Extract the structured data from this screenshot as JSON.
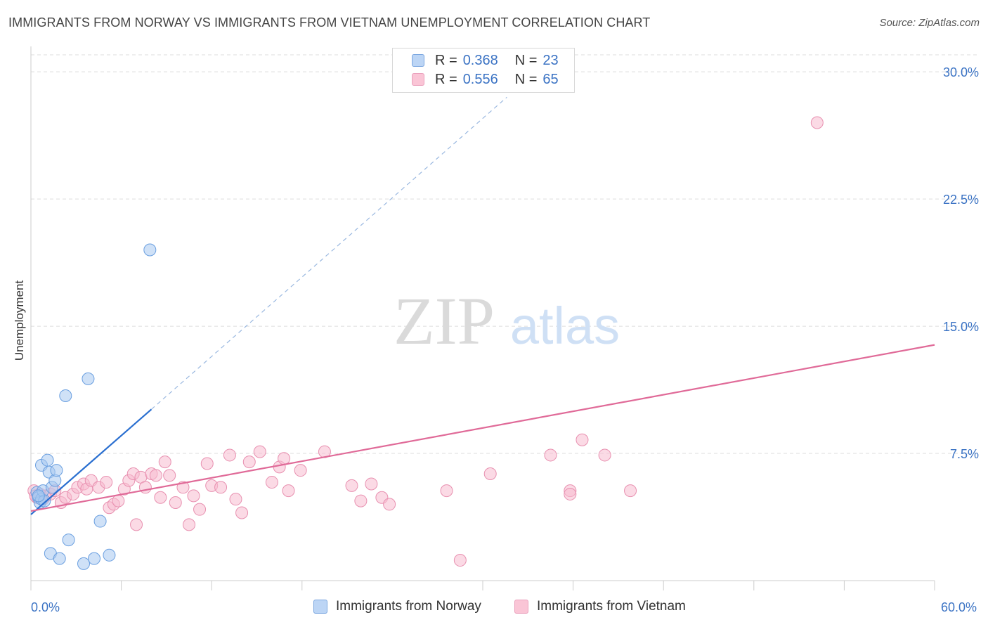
{
  "header": {
    "title": "IMMIGRANTS FROM NORWAY VS IMMIGRANTS FROM VIETNAM UNEMPLOYMENT CORRELATION CHART",
    "source": "Source: ZipAtlas.com"
  },
  "watermark": {
    "zip": "ZIP",
    "atlas": "atlas"
  },
  "colors": {
    "norway_fill": "#a8c8f0",
    "norway_stroke": "#6a9fe0",
    "norway_line": "#2a6fd0",
    "vietnam_fill": "#f8bcd0",
    "vietnam_stroke": "#e890b0",
    "vietnam_line": "#e06a98",
    "tick_label": "#3b73c4",
    "grid": "#dddddd"
  },
  "legend": {
    "rows": [
      {
        "r_label": "R =",
        "r_value": "0.368",
        "n_label": "N =",
        "n_value": "23"
      },
      {
        "r_label": "R =",
        "r_value": "0.556",
        "n_label": "N =",
        "n_value": "65"
      }
    ]
  },
  "chart_data": {
    "type": "scatter",
    "title": "IMMIGRANTS FROM NORWAY VS IMMIGRANTS FROM VIETNAM UNEMPLOYMENT CORRELATION CHART",
    "xlabel": "",
    "ylabel": "Unemployment",
    "xlim": [
      0,
      60
    ],
    "ylim": [
      0,
      31
    ],
    "x_tick_labels": [
      {
        "value": 0,
        "label": "0.0%"
      },
      {
        "value": 60,
        "label": "60.0%"
      }
    ],
    "y_tick_labels": [
      {
        "value": 7.5,
        "label": "7.5%"
      },
      {
        "value": 15,
        "label": "15.0%"
      },
      {
        "value": 22.5,
        "label": "22.5%"
      },
      {
        "value": 30,
        "label": "30.0%"
      }
    ],
    "x_ticks_minor": [
      0,
      6,
      12,
      18,
      30,
      36,
      42,
      48,
      54,
      60
    ],
    "grid": true,
    "series": [
      {
        "name": "Immigrants from Norway",
        "r": 0.368,
        "n": 23,
        "trend": {
          "x0": 0,
          "y0": 3.9,
          "x1": 8,
          "y1": 10.1,
          "dash_to_x": 31.6,
          "dash_to_y": 28.5
        },
        "points": [
          [
            0.4,
            5.2
          ],
          [
            0.5,
            4.9
          ],
          [
            0.6,
            4.6
          ],
          [
            0.7,
            4.8
          ],
          [
            0.8,
            5.3
          ],
          [
            0.9,
            4.7
          ],
          [
            0.7,
            6.8
          ],
          [
            1.1,
            7.1
          ],
          [
            1.2,
            6.4
          ],
          [
            1.4,
            5.5
          ],
          [
            1.6,
            5.9
          ],
          [
            1.7,
            6.5
          ],
          [
            2.3,
            10.9
          ],
          [
            3.8,
            11.9
          ],
          [
            2.5,
            2.4
          ],
          [
            1.3,
            1.6
          ],
          [
            1.9,
            1.3
          ],
          [
            3.5,
            1.0
          ],
          [
            4.2,
            1.3
          ],
          [
            5.2,
            1.5
          ],
          [
            4.6,
            3.5
          ],
          [
            7.9,
            19.5
          ],
          [
            0.5,
            5.0
          ]
        ]
      },
      {
        "name": "Immigrants from Vietnam",
        "r": 0.556,
        "n": 65,
        "trend": {
          "x0": 0,
          "y0": 4.1,
          "x1": 60,
          "y1": 13.9
        },
        "points": [
          [
            0.2,
            5.3
          ],
          [
            0.4,
            4.9
          ],
          [
            0.6,
            5.1
          ],
          [
            0.8,
            4.8
          ],
          [
            1.0,
            5.0
          ],
          [
            1.3,
            5.1
          ],
          [
            1.6,
            5.3
          ],
          [
            2.0,
            4.6
          ],
          [
            2.3,
            4.9
          ],
          [
            2.8,
            5.1
          ],
          [
            3.1,
            5.5
          ],
          [
            3.5,
            5.7
          ],
          [
            3.7,
            5.4
          ],
          [
            4.0,
            5.9
          ],
          [
            4.5,
            5.5
          ],
          [
            5.0,
            5.8
          ],
          [
            5.2,
            4.3
          ],
          [
            5.5,
            4.5
          ],
          [
            5.8,
            4.7
          ],
          [
            6.2,
            5.4
          ],
          [
            6.5,
            5.9
          ],
          [
            6.8,
            6.3
          ],
          [
            7.0,
            3.3
          ],
          [
            7.3,
            6.1
          ],
          [
            7.6,
            5.5
          ],
          [
            8.0,
            6.3
          ],
          [
            8.3,
            6.2
          ],
          [
            8.6,
            4.9
          ],
          [
            8.9,
            7.0
          ],
          [
            9.2,
            6.2
          ],
          [
            9.6,
            4.6
          ],
          [
            10.1,
            5.5
          ],
          [
            10.5,
            3.3
          ],
          [
            10.8,
            5.0
          ],
          [
            11.2,
            4.2
          ],
          [
            11.7,
            6.9
          ],
          [
            12.0,
            5.6
          ],
          [
            12.6,
            5.5
          ],
          [
            13.2,
            7.4
          ],
          [
            13.6,
            4.8
          ],
          [
            14.0,
            4.0
          ],
          [
            14.5,
            7.0
          ],
          [
            15.2,
            7.6
          ],
          [
            16.0,
            5.8
          ],
          [
            16.5,
            6.7
          ],
          [
            16.8,
            7.2
          ],
          [
            17.1,
            5.3
          ],
          [
            17.9,
            6.5
          ],
          [
            19.5,
            7.6
          ],
          [
            21.3,
            5.6
          ],
          [
            21.9,
            4.7
          ],
          [
            22.6,
            5.7
          ],
          [
            23.3,
            4.9
          ],
          [
            23.8,
            4.5
          ],
          [
            27.6,
            5.3
          ],
          [
            28.5,
            1.2
          ],
          [
            30.5,
            6.3
          ],
          [
            34.5,
            7.4
          ],
          [
            35.8,
            5.3
          ],
          [
            35.8,
            5.1
          ],
          [
            36.6,
            8.3
          ],
          [
            38.1,
            7.4
          ],
          [
            39.8,
            5.3
          ],
          [
            52.2,
            27.0
          ],
          [
            0.3,
            5.0
          ]
        ]
      }
    ]
  }
}
